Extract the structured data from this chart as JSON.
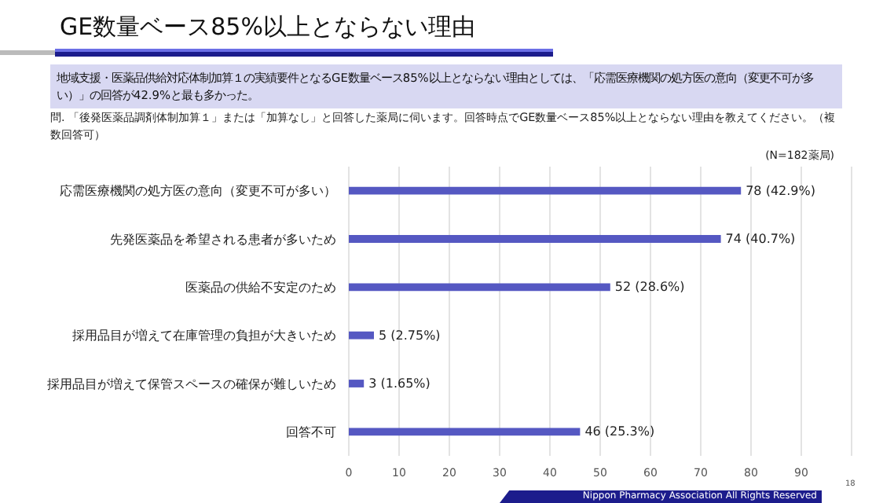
{
  "chart_data": {
    "type": "bar",
    "orientation": "horizontal",
    "title": "GE数量ベース85%以上とならない理由",
    "subtitle": "地域支援・医薬品供給対応体制加算１の実績要件となるGE数量ベース85%以上とならない理由としては、「応需医療機関の処方医の意向（変更不可が多い）」の回答が42.9%と最も多かった。",
    "annotations": [
      "問. 「後発医薬品調剤体制加算１」または「加算なし」と回答した薬局に伺います。回答時点でGE数量ベース85%以上とならない理由を教えてください。（複数回答可）",
      "(N=182薬局)",
      "Nippon Pharmacy Association All Rights Reserved",
      "18"
    ],
    "categories": [
      "応需医療機関の処方医の意向（変更不可が多い）",
      "先発医薬品を希望される患者が多いため",
      "医薬品の供給不安定のため",
      "採用品目が増えて在庫管理の負担が大きいため",
      "採用品目が増えて保管スペースの確保が難しいため",
      "回答不可"
    ],
    "values": [
      78,
      74,
      52,
      5,
      3,
      46
    ],
    "value_labels": [
      "78 (42.9%)",
      "74 (40.7%)",
      "52 (28.6%)",
      "5 (2.75%)",
      "3 (1.65%)",
      "46 (25.3%)"
    ],
    "color": "#5558c2",
    "xlim": [
      0,
      100
    ],
    "xticks": [
      0,
      10,
      20,
      30,
      40,
      50,
      60,
      70,
      80,
      90
    ],
    "grid": "x",
    "legend": false
  }
}
